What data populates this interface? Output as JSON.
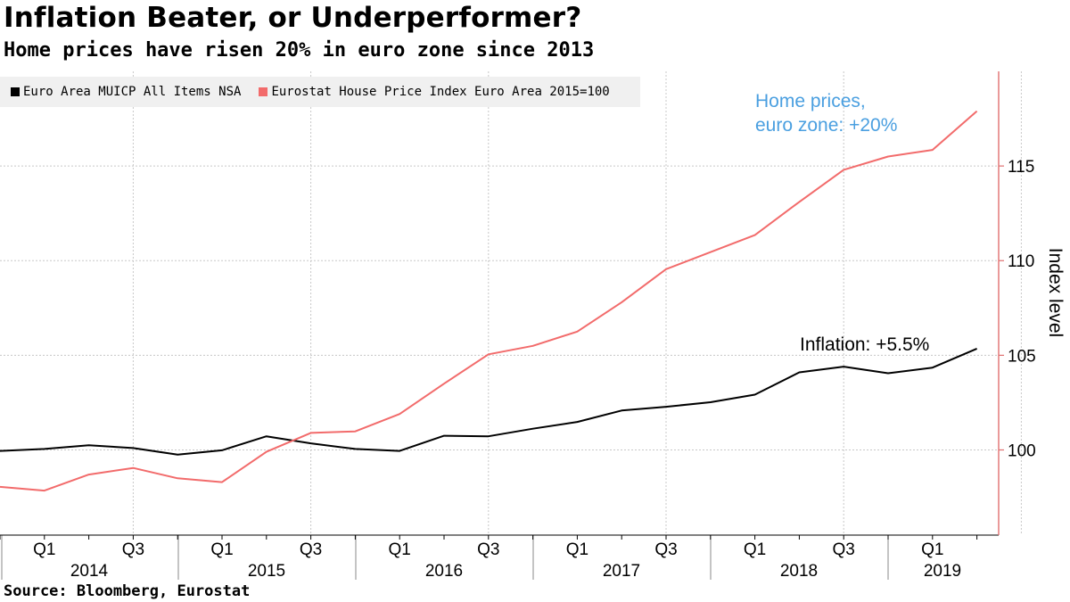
{
  "chart_data": {
    "type": "line",
    "title": "Inflation Beater, or Underperformer?",
    "subtitle": "Home prices have risen 20% in euro zone since 2013",
    "ylabel": "Index level",
    "xlabel": "",
    "ylim": [
      95.5,
      120
    ],
    "y_ticks": [
      100,
      105,
      110,
      115
    ],
    "y_axis_side": "right",
    "grid": true,
    "legend_position": "top-left",
    "x": [
      "2013 Q4",
      "2014 Q1",
      "2014 Q2",
      "2014 Q3",
      "2014 Q4",
      "2015 Q1",
      "2015 Q2",
      "2015 Q3",
      "2015 Q4",
      "2016 Q1",
      "2016 Q2",
      "2016 Q3",
      "2016 Q4",
      "2017 Q1",
      "2017 Q2",
      "2017 Q3",
      "2017 Q4",
      "2018 Q1",
      "2018 Q2",
      "2018 Q3",
      "2018 Q4",
      "2019 Q1",
      "2019 Q2"
    ],
    "x_tick_labels": [
      "Q1",
      "Q3",
      "Q1",
      "Q3",
      "Q1",
      "Q3",
      "Q1",
      "Q3",
      "Q1",
      "Q3",
      "Q1"
    ],
    "x_year_labels": [
      "2014",
      "2015",
      "2016",
      "2017",
      "2018",
      "2019"
    ],
    "series": [
      {
        "name": "Euro Area MUICP All Items NSA",
        "color": "#000000",
        "values": [
          99.95,
          100.05,
          100.25,
          100.1,
          99.75,
          99.98,
          100.72,
          100.35,
          100.05,
          99.95,
          100.75,
          100.72,
          101.12,
          101.48,
          102.08,
          102.28,
          102.52,
          102.92,
          104.1,
          104.4,
          104.05,
          104.35,
          105.35
        ]
      },
      {
        "name": "Eurostat House Price Index Euro Area 2015=100",
        "color": "#f26b6b",
        "values": [
          98.05,
          97.85,
          98.7,
          99.05,
          98.5,
          98.3,
          99.9,
          100.9,
          100.98,
          101.9,
          103.5,
          105.05,
          105.5,
          106.25,
          107.8,
          109.55,
          110.45,
          111.35,
          113.1,
          114.8,
          115.5,
          115.85,
          117.9
        ]
      }
    ],
    "annotations": [
      {
        "text_lines": [
          "Home prices,",
          "euro zone: +20%"
        ],
        "color": "#4a9fe0"
      },
      {
        "text_lines": [
          "Inflation: +5.5%"
        ],
        "color": "#000000"
      }
    ]
  },
  "source": "Source: Bloomberg, Eurostat",
  "colors": {
    "axis": "#e07070",
    "grid": "#c8c8c8",
    "legend_bg": "#f0f0f0"
  }
}
